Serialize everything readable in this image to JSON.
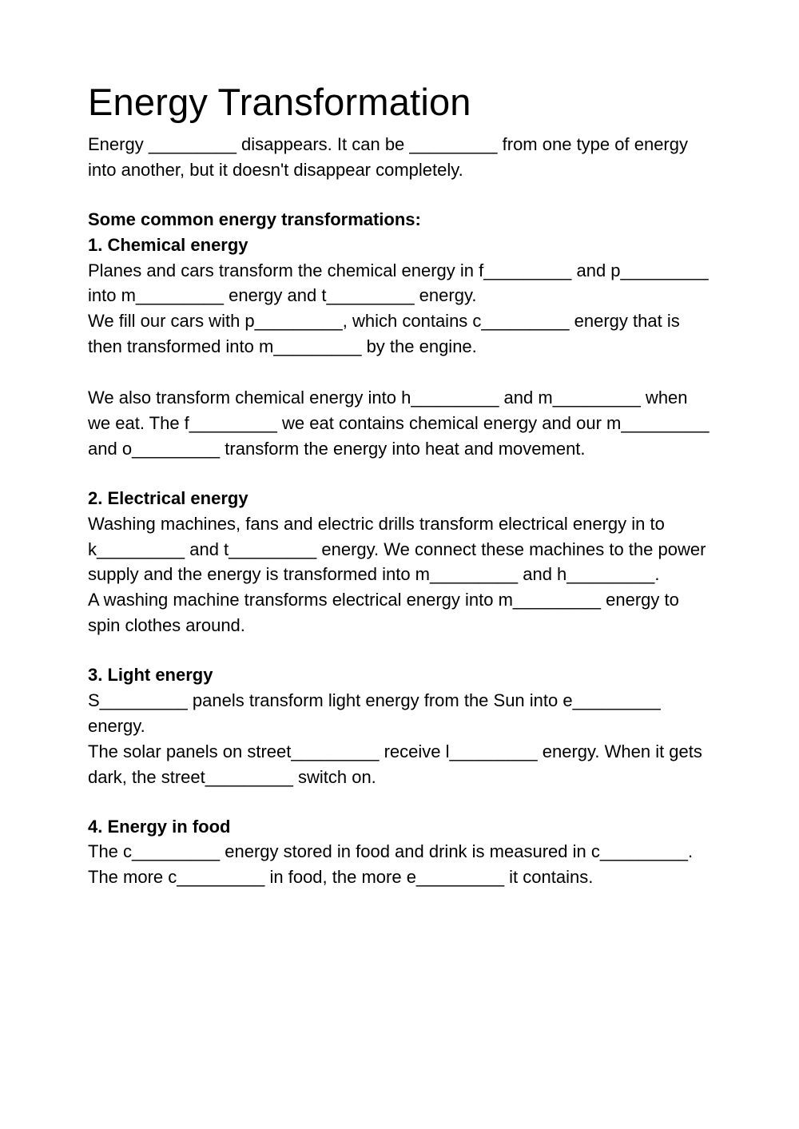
{
  "colors": {
    "text": "#000000",
    "background": "#ffffff"
  },
  "typography": {
    "title_fontsize": 47,
    "body_fontsize": 22,
    "font_family": "Arial"
  },
  "title": "Energy Transformation",
  "intro": "Energy _________ disappears. It can be _________ from one type of energy into another, but it doesn't disappear completely.",
  "sections_heading": "Some common energy transformations:",
  "sections": [
    {
      "heading": "1. Chemical energy",
      "paragraphs": [
        "Planes and cars transform the chemical energy in f_________ and p_________ into m_________ energy and t_________ energy.",
        "We fill our cars with p_________, which contains c_________ energy that is then transformed into m_________ by the engine.",
        "",
        "We also transform chemical energy into h_________ and m_________ when we eat. The f_________ we eat contains chemical energy and our m_________ and o_________ transform the energy into heat and movement."
      ]
    },
    {
      "heading": "2. Electrical energy",
      "paragraphs": [
        "Washing machines, fans and electric drills transform electrical energy in to k_________ and t_________ energy. We connect these machines to the power supply and the energy is transformed into m_________ and h_________.",
        "A washing machine transforms electrical energy into m_________ energy to spin clothes around."
      ]
    },
    {
      "heading": "3. Light energy",
      "paragraphs": [
        "S_________ panels transform light energy from the Sun into e_________ energy.",
        "The solar panels on street_________ receive l_________ energy. When it gets dark, the street_________ switch on."
      ]
    },
    {
      "heading": "4. Energy in food",
      "paragraphs": [
        "The c_________ energy stored in food and drink is measured in c_________. The more c_________ in food, the more e_________ it contains."
      ]
    }
  ]
}
